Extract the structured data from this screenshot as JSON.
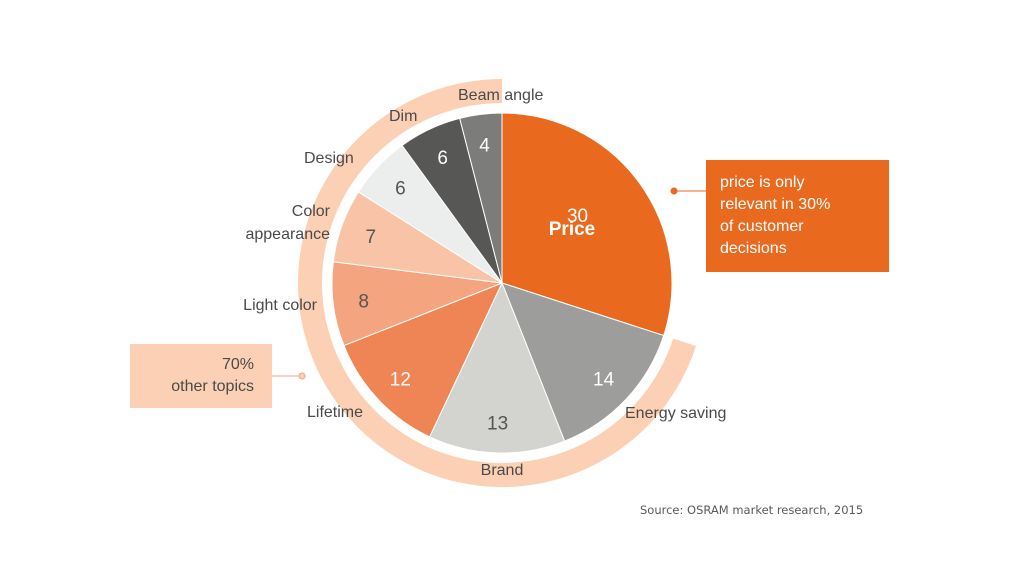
{
  "chart_data": {
    "type": "pie",
    "slices": [
      {
        "label": "Price",
        "value": 30,
        "color": "#e9691f",
        "text_color": "#ffffff"
      },
      {
        "label": "Energy saving",
        "value": 14,
        "color": "#9d9d9c",
        "text_color": "#ffffff"
      },
      {
        "label": "Brand",
        "value": 13,
        "color": "#d3d3d0",
        "text_color": "#555555"
      },
      {
        "label": "Lifetime",
        "value": 12,
        "color": "#ef8454",
        "text_color": "#ffffff"
      },
      {
        "label": "Light color",
        "value": 8,
        "color": "#f4a57f",
        "text_color": "#555555"
      },
      {
        "label": "Color appearance",
        "value": 7,
        "color": "#f8c3a6",
        "text_color": "#555555"
      },
      {
        "label": "Design",
        "value": 6,
        "color": "#eceded",
        "text_color": "#555555"
      },
      {
        "label": "Dim",
        "value": 6,
        "color": "#575756",
        "text_color": "#ffffff"
      },
      {
        "label": "Beam angle",
        "value": 4,
        "color": "#7c7c7b",
        "text_color": "#ffffff"
      }
    ],
    "outer_ring": {
      "label": "70% other topics",
      "color": "#fbd0b4"
    }
  },
  "category_labels": {
    "price": "Price",
    "energy_saving": "Energy saving",
    "brand": "Brand",
    "lifetime": "Lifetime",
    "light_color": "Light color",
    "color_appearance_1": "Color",
    "color_appearance_2": "appearance",
    "design": "Design",
    "dim": "Dim",
    "beam_angle": "Beam angle"
  },
  "callouts": {
    "price": {
      "lines": [
        "price is only",
        "relevant in 30%",
        "of customer",
        "decisions"
      ],
      "color": "#e9691f"
    },
    "others": {
      "lines": [
        "70%",
        "other topics"
      ],
      "color": "#fbd0b4"
    }
  },
  "source": "Source: OSRAM market research, 2015"
}
